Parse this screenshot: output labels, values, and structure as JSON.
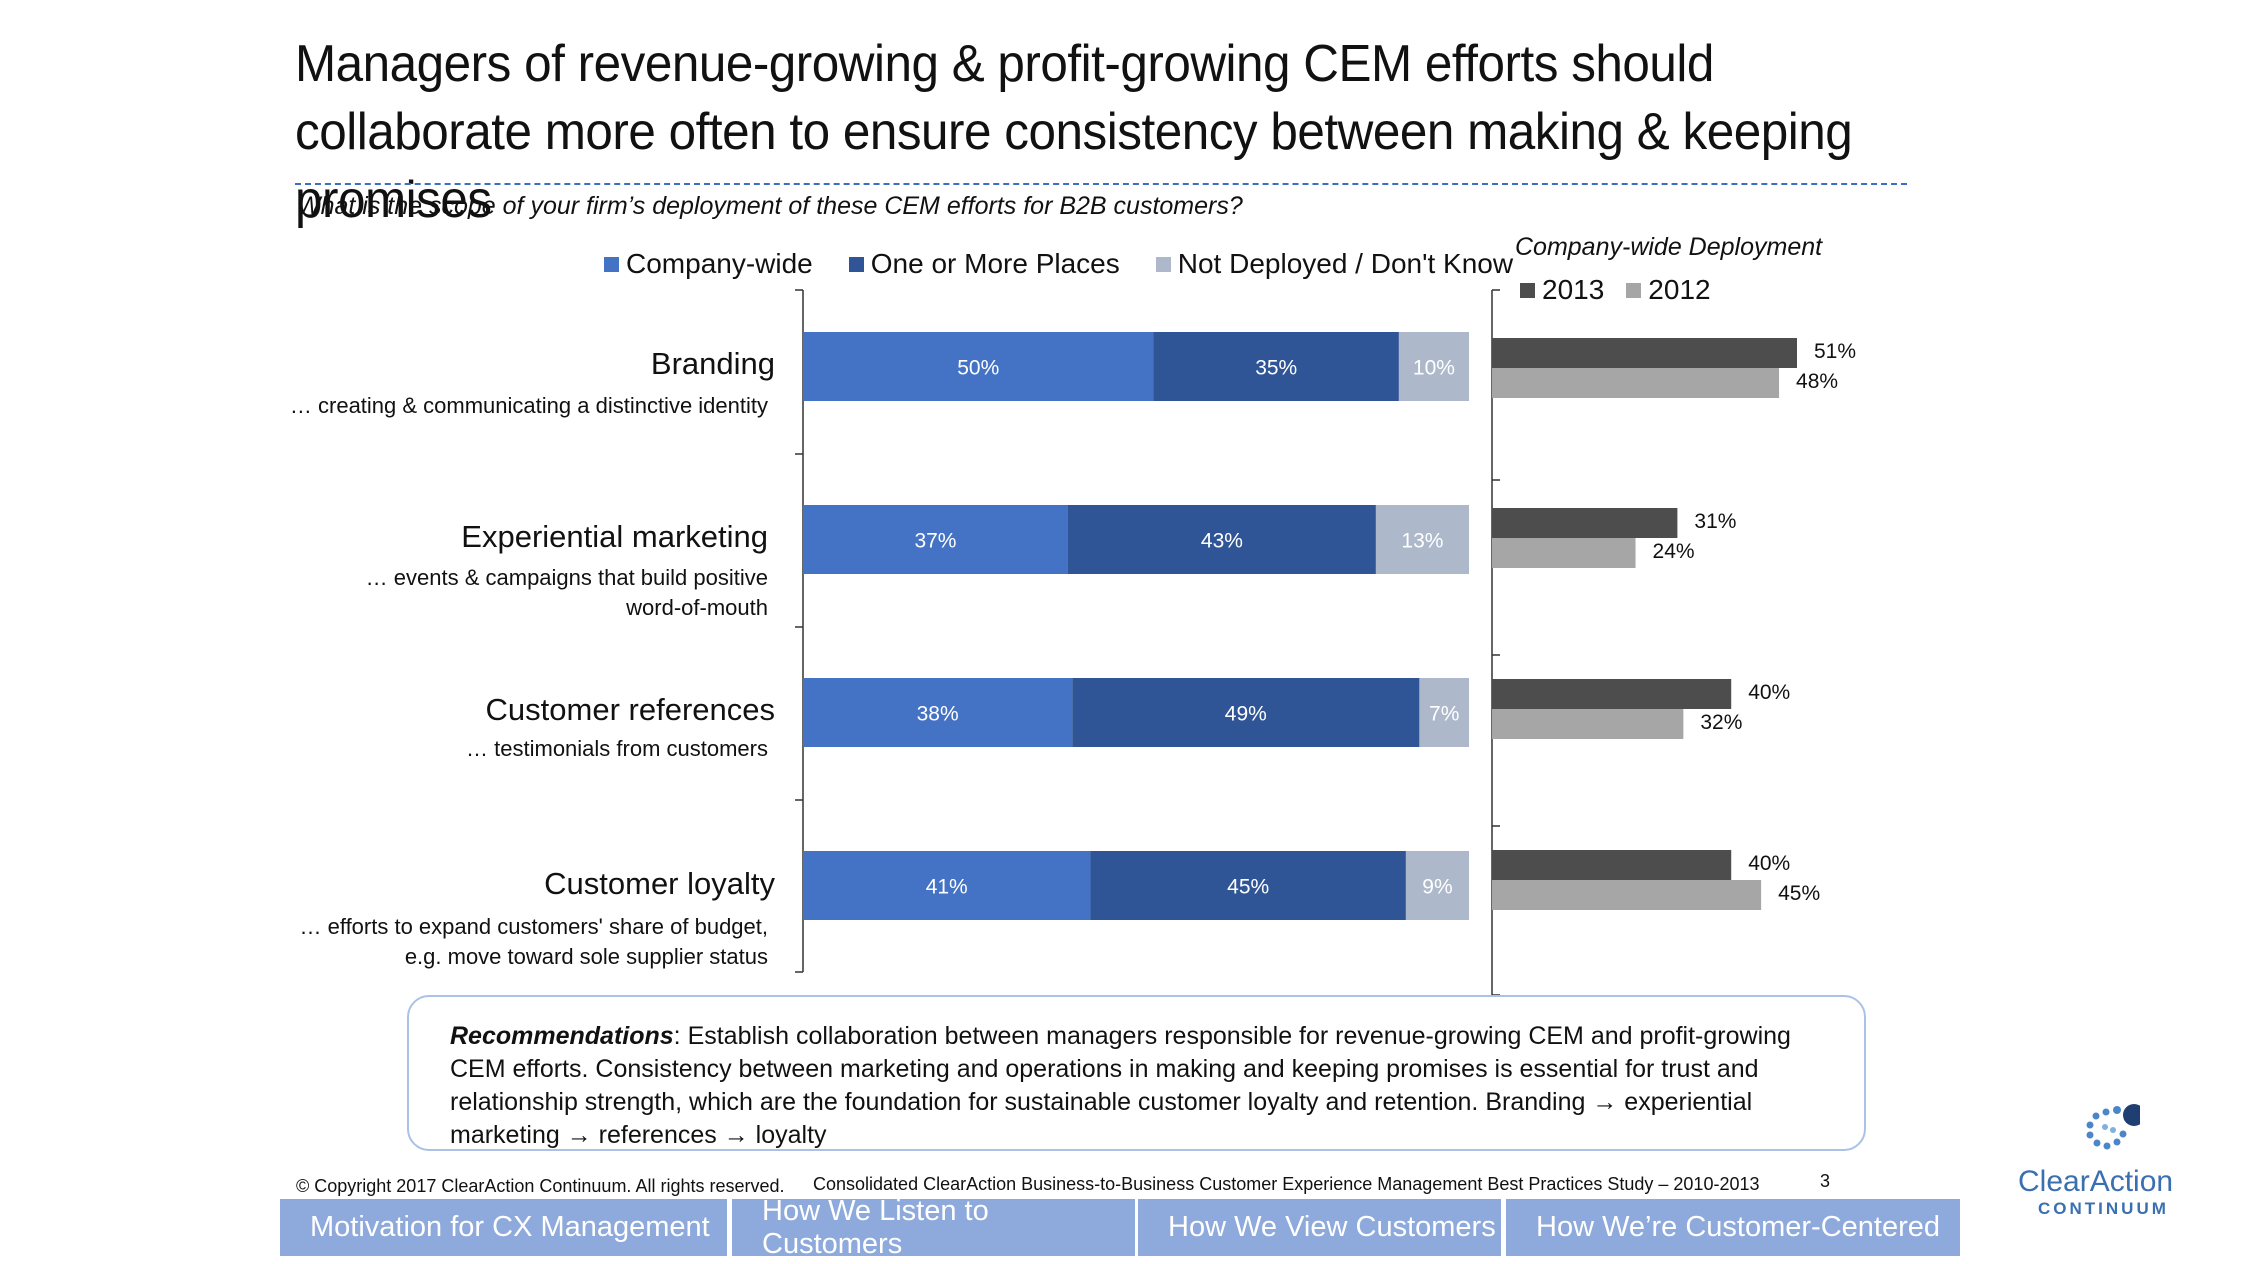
{
  "title": "Managers of revenue-growing & profit-growing CEM efforts should collaborate more often to ensure consistency between making & keeping promises",
  "question": "What is the scope of your firm’s deployment of these CEM efforts for B2B customers?",
  "colors": {
    "company_wide": "#4472c4",
    "one_or_more": "#2f5597",
    "not_deployed": "#adb9ca",
    "y2013": "#4d4d4d",
    "y2012": "#a6a6a6",
    "nav_tab": "#8ea9db"
  },
  "chart_data": [
    {
      "type": "bar",
      "orientation": "horizontal",
      "stacked": true,
      "categories": [
        "Branding",
        "Experiential marketing",
        "Customer references",
        "Customer loyalty"
      ],
      "category_descriptions": [
        [
          "… creating & communicating a distinctive identity"
        ],
        [
          "…  events & campaigns that build positive",
          "word-of-mouth"
        ],
        [
          "…  testimonials from customers"
        ],
        [
          "… efforts to expand customers' share of budget,",
          "e.g. move toward sole supplier status"
        ]
      ],
      "series": [
        {
          "name": "Company-wide",
          "values": [
            50,
            37,
            38,
            41
          ],
          "labels": [
            "50%",
            "37%",
            "38%",
            "41%"
          ]
        },
        {
          "name": "One or More Places",
          "values": [
            35,
            43,
            49,
            45
          ],
          "labels": [
            "35%",
            "43%",
            "49%",
            "45%"
          ]
        },
        {
          "name": "Not Deployed / Don't Know",
          "values": [
            10,
            13,
            7,
            9
          ],
          "labels": [
            "10%",
            "13%",
            "7%",
            "9%"
          ]
        }
      ],
      "legend_position": "top"
    },
    {
      "type": "bar",
      "orientation": "horizontal",
      "title": "Company-wide Deployment",
      "categories": [
        "Branding",
        "Experiential marketing",
        "Customer references",
        "Customer loyalty"
      ],
      "series": [
        {
          "name": "2013",
          "values": [
            51,
            31,
            40,
            40
          ],
          "labels": [
            "51%",
            "31%",
            "40%",
            "40%"
          ]
        },
        {
          "name": "2012",
          "values": [
            48,
            24,
            32,
            45
          ],
          "labels": [
            "48%",
            "24%",
            "32%",
            "45%"
          ]
        }
      ],
      "legend_position": "top"
    }
  ],
  "recommendations": {
    "label": "Recommendations",
    "text": ": Establish collaboration between managers responsible for revenue-growing CEM and profit-growing CEM efforts. Consistency between marketing and operations in making and keeping promises is essential for trust and relationship strength, which are the foundation for sustainable customer loyalty and retention. Branding → experiential marketing → references → loyalty"
  },
  "footer": {
    "copyright": "© Copyright 2017 ClearAction Continuum. All rights reserved.",
    "study": "Consolidated ClearAction Business-to-Business Customer Experience Management Best Practices Study – 2010-2013",
    "page_number": "3"
  },
  "nav_tabs": [
    "Motivation for CX Management",
    "How We Listen to Customers",
    "How We View Customers",
    "How We’re Customer-Centered"
  ],
  "logo": {
    "name": "ClearAction",
    "sub": "CONTINUUM"
  }
}
